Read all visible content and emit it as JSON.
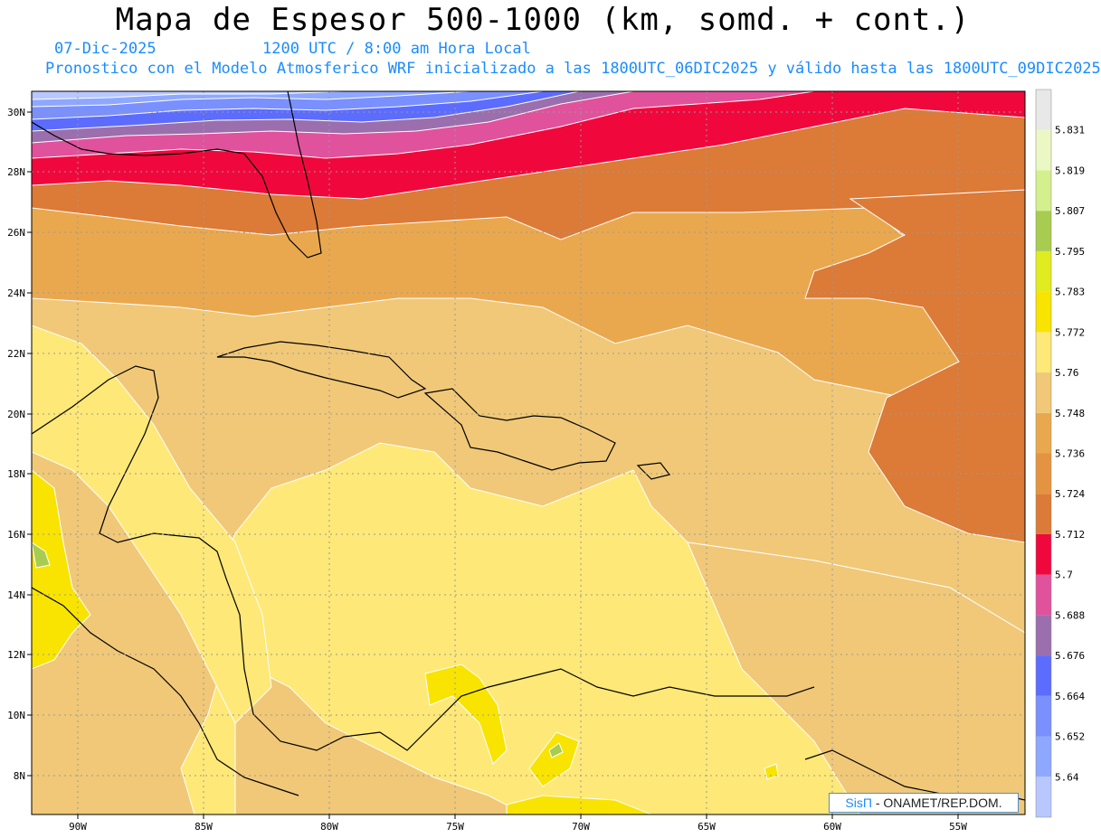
{
  "header": {
    "title": "Mapa de Espesor 500-1000 (km, somd. + cont.)",
    "date": "07-Dic-2025",
    "time": "1200 UTC / 8:00 am Hora Local",
    "description": "Pronostico con el Modelo Atmosferico WRF inicializado a las 1800UTC_06DIC2025 y válido hasta las  1800UTC_09DIC2025"
  },
  "map": {
    "lat_labels": [
      "30N",
      "28N",
      "26N",
      "24N",
      "22N",
      "20N",
      "18N",
      "16N",
      "14N",
      "12N",
      "10N",
      "8N"
    ],
    "lon_labels": [
      "90W",
      "85W",
      "80W",
      "75W",
      "70W",
      "65W",
      "60W",
      "55W"
    ],
    "grid": true
  },
  "colorbar": {
    "colors": [
      "#b8c8ff",
      "#8fa8ff",
      "#7a90ff",
      "#5c6cff",
      "#9b6fae",
      "#e0529c",
      "#f0083c",
      "#dc7a37",
      "#e49440",
      "#eaa84e",
      "#f0c878",
      "#fee878",
      "#f8e400",
      "#e0ec20",
      "#a8cc50",
      "#d4f08c",
      "#ecf8c4",
      "#e8e8e8"
    ],
    "labels": [
      "5.64",
      "5.652",
      "5.664",
      "5.676",
      "5.688",
      "5.7",
      "5.712",
      "5.724",
      "5.736",
      "5.748",
      "5.76",
      "5.772",
      "5.783",
      "5.795",
      "5.807",
      "5.819",
      "5.831"
    ]
  },
  "credit": {
    "brand": "SisΠ",
    "text": "- ONAMET/REP.DOM."
  }
}
